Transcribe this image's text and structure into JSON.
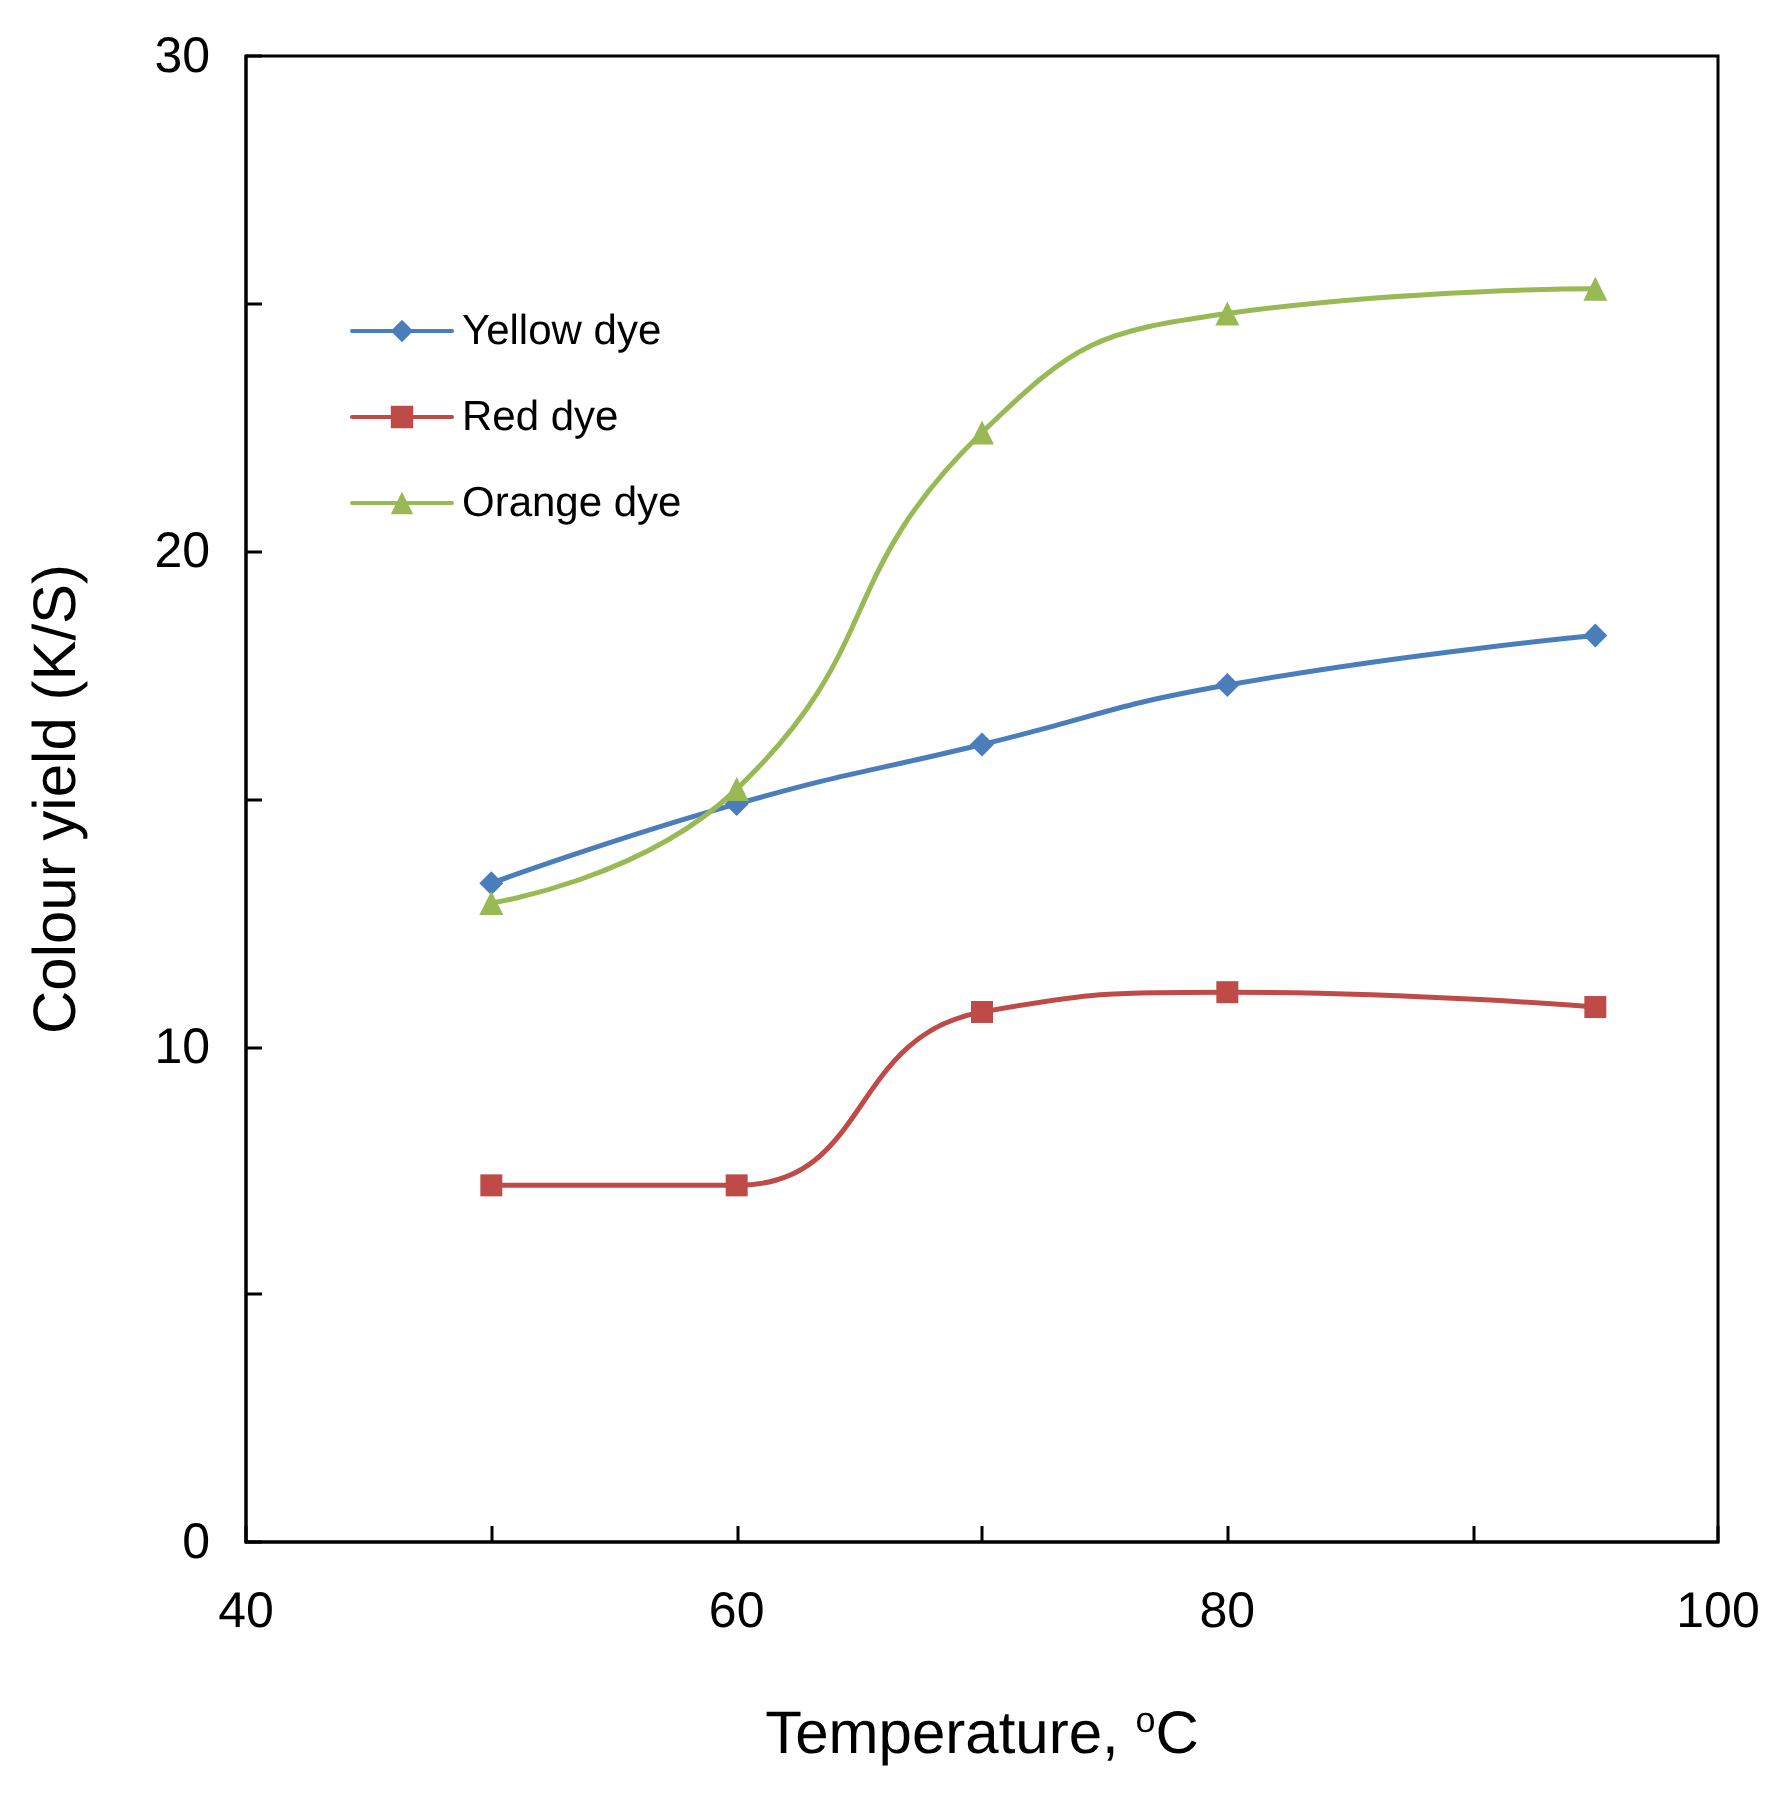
{
  "chart_data": {
    "type": "line",
    "xlabel": "Temperature, $^{o}$C",
    "ylabel": "Colour yield (K/S)",
    "x": [
      50,
      60,
      70,
      80,
      95
    ],
    "series": [
      {
        "name": "Yellow dye",
        "color": "#4a7ebb",
        "marker": "diamond",
        "values": [
          13.3,
          14.9,
          16.1,
          17.3,
          18.3
        ]
      },
      {
        "name": "Red dye",
        "color": "#be4b48",
        "marker": "square",
        "values": [
          7.2,
          7.2,
          10.7,
          11.1,
          10.8
        ]
      },
      {
        "name": "Orange dye",
        "color": "#98b954",
        "marker": "triangle",
        "values": [
          12.9,
          15.2,
          22.4,
          24.8,
          25.3
        ]
      }
    ],
    "xlim": [
      40,
      100
    ],
    "xticks": [
      40,
      {
        "value": 50,
        "label": null
      },
      60,
      {
        "value": 70,
        "label": null
      },
      80,
      {
        "value": 90,
        "label": null
      },
      100
    ],
    "ylim": [
      0,
      30
    ],
    "yticks": [
      0,
      {
        "value": 5,
        "label": null
      },
      10,
      {
        "value": 15,
        "label": null
      },
      20,
      {
        "value": 25,
        "label": null
      },
      30
    ],
    "grid": false,
    "legend": "top left",
    "line_style": "solid"
  }
}
